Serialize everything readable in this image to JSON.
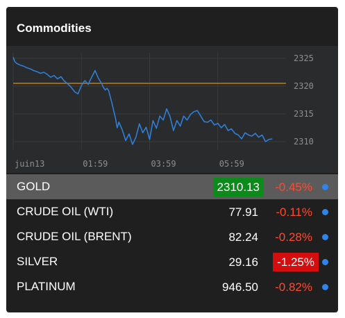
{
  "widget": {
    "title": "Commodities"
  },
  "chart_data": {
    "type": "line",
    "reference_line": 2320.5,
    "ylim": [
      2308.5,
      2326
    ],
    "yticks": [
      2325,
      2320,
      2315,
      2310
    ],
    "ytick_labels": [
      "2325",
      "2320",
      "2315",
      "2310"
    ],
    "xtick_labels": [
      "juin13",
      "01:59",
      "03:59",
      "05:59"
    ],
    "xtick_positions": [
      0,
      2,
      4,
      6
    ],
    "xlim": [
      0,
      8.0
    ],
    "colors": {
      "line": "#2f7fd8",
      "reference": "#c07e15"
    },
    "series": [
      {
        "x": [
          0.0,
          0.05,
          0.1,
          0.2,
          0.3,
          0.4,
          0.5,
          0.6,
          0.7,
          0.8,
          0.9,
          1.0,
          1.1,
          1.2,
          1.3,
          1.4,
          1.5,
          1.6,
          1.7,
          1.8,
          1.9,
          2.0,
          2.1,
          2.2,
          2.3,
          2.4,
          2.5,
          2.6,
          2.65,
          2.7,
          2.75,
          2.8,
          2.9,
          3.0,
          3.05,
          3.1,
          3.2,
          3.3,
          3.4,
          3.5,
          3.6,
          3.7,
          3.8,
          3.9,
          4.0,
          4.1,
          4.2,
          4.3,
          4.4,
          4.5,
          4.6,
          4.7,
          4.8,
          4.9,
          5.0,
          5.1,
          5.2,
          5.3,
          5.4,
          5.5,
          5.6,
          5.7,
          5.8,
          5.9,
          6.0,
          6.1,
          6.2,
          6.3,
          6.4,
          6.5,
          6.6,
          6.7,
          6.8,
          6.9,
          7.0,
          7.1,
          7.2,
          7.3,
          7.4,
          7.5,
          7.6
        ],
        "y": [
          2325.2,
          2324.4,
          2324.1,
          2323.8,
          2323.6,
          2323.3,
          2323.1,
          2322.8,
          2322.6,
          2322.3,
          2322.5,
          2322.1,
          2321.6,
          2321.9,
          2321.3,
          2321.7,
          2320.9,
          2320.4,
          2319.8,
          2319.0,
          2318.6,
          2320.1,
          2321.0,
          2320.3,
          2321.6,
          2322.8,
          2321.4,
          2320.4,
          2319.7,
          2319.3,
          2319.6,
          2319.2,
          2316.8,
          2314.2,
          2312.5,
          2313.5,
          2312.1,
          2310.2,
          2311.4,
          2309.5,
          2310.8,
          2313.2,
          2311.6,
          2312.6,
          2310.4,
          2313.8,
          2312.4,
          2314.6,
          2313.9,
          2315.9,
          2314.5,
          2312.0,
          2313.8,
          2312.8,
          2314.6,
          2313.9,
          2314.9,
          2315.4,
          2315.6,
          2314.6,
          2313.6,
          2313.5,
          2313.9,
          2313.0,
          2313.3,
          2312.5,
          2313.1,
          2312.0,
          2312.3,
          2311.5,
          2311.2,
          2310.5,
          2311.6,
          2311.2,
          2311.0,
          2311.5,
          2310.8,
          2311.2,
          2310.0,
          2310.4,
          2310.5
        ]
      }
    ]
  },
  "commodities": [
    {
      "name": "GOLD",
      "price": "2310.13",
      "change": "-0.45%"
    },
    {
      "name": "CRUDE OIL (WTI)",
      "price": "77.91",
      "change": "-0.11%"
    },
    {
      "name": "CRUDE OIL (BRENT)",
      "price": "82.24",
      "change": "-0.28%"
    },
    {
      "name": "SILVER",
      "price": "29.16",
      "change": "-1.25%"
    },
    {
      "name": "PLATINUM",
      "price": "946.50",
      "change": "-0.82%"
    }
  ]
}
